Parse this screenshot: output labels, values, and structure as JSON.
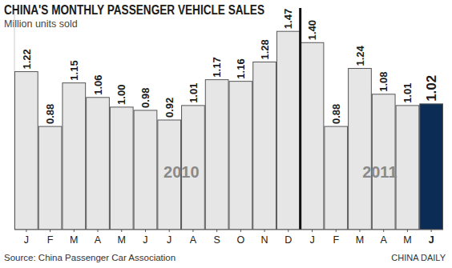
{
  "chart_data": {
    "type": "bar",
    "title": "CHINA'S MONTHLY PASSENGER VEHICLE SALES",
    "subtitle": "Million units sold",
    "categories": [
      "J",
      "F",
      "M",
      "A",
      "M",
      "J",
      "J",
      "A",
      "S",
      "O",
      "N",
      "D",
      "J",
      "F",
      "M",
      "A",
      "M",
      "J"
    ],
    "values": [
      1.22,
      0.88,
      1.15,
      1.06,
      1.0,
      0.98,
      0.92,
      1.01,
      1.17,
      1.16,
      1.28,
      1.47,
      1.4,
      0.88,
      1.24,
      1.08,
      1.01,
      1.02
    ],
    "value_labels": [
      "1.22",
      "0.88",
      "1.15",
      "1.06",
      "1.00",
      "0.98",
      "0.92",
      "1.01",
      "1.17",
      "1.16",
      "1.28",
      "1.47",
      "1.40",
      "0.88",
      "1.24",
      "1.08",
      "1.01",
      "1.02"
    ],
    "colors": [
      "#e6e6e6",
      "#e6e6e6",
      "#e6e6e6",
      "#e6e6e6",
      "#e6e6e6",
      "#e6e6e6",
      "#e6e6e6",
      "#e6e6e6",
      "#e6e6e6",
      "#e6e6e6",
      "#e6e6e6",
      "#e6e6e6",
      "#e6e6e6",
      "#e6e6e6",
      "#e6e6e6",
      "#e6e6e6",
      "#e6e6e6",
      "#0b2c54"
    ],
    "ylim": [
      0.24,
      1.6
    ],
    "data_labels": true,
    "tick_labels": "x",
    "grid": false,
    "annotations": [
      "2010",
      "2011"
    ],
    "source": "Source: China Passenger Car Association",
    "credit": "CHINA DAILY"
  }
}
